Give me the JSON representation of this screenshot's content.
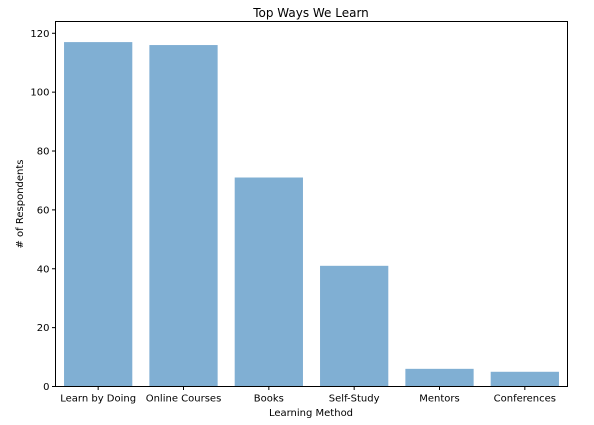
{
  "chart_data": {
    "type": "bar",
    "title": "Top Ways We Learn",
    "xlabel": "Learning Method",
    "ylabel": "# of Respondents",
    "categories": [
      "Learn by Doing",
      "Online Courses",
      "Books",
      "Self-Study",
      "Mentors",
      "Conferences"
    ],
    "values": [
      117,
      116,
      71,
      41,
      6,
      5
    ],
    "ylim": [
      0,
      124
    ],
    "yticks": [
      0,
      20,
      40,
      60,
      80,
      100,
      120
    ],
    "grid": false,
    "bar_color": "#80afd3"
  }
}
